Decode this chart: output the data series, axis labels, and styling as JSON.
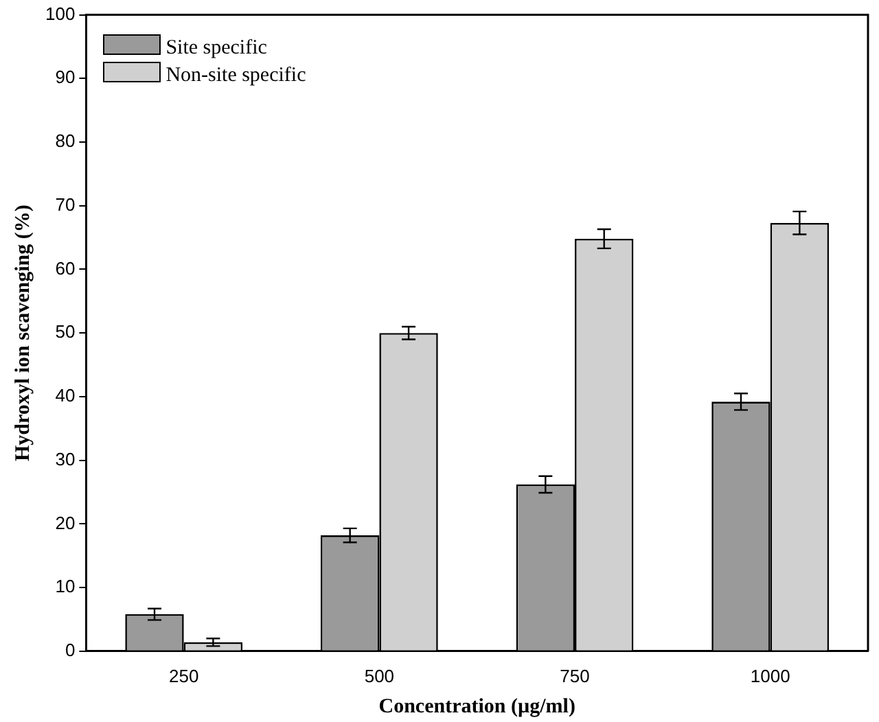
{
  "chart_data": {
    "type": "bar",
    "xlabel": "Concentration (µg/ml)",
    "ylabel": "Hydroxyl ion scavenging (%)",
    "categories": [
      "250",
      "500",
      "750",
      "1000"
    ],
    "series": [
      {
        "name": "Site specific",
        "color": "#9a9a9a",
        "values": [
          5.8,
          18.2,
          26.2,
          39.2
        ],
        "errors": [
          0.9,
          1.1,
          1.3,
          1.3
        ]
      },
      {
        "name": "Non-site specific",
        "color": "#d0d0d0",
        "values": [
          1.4,
          50,
          64.8,
          67.3
        ],
        "errors": [
          0.6,
          1.0,
          1.5,
          1.8
        ]
      }
    ],
    "ylim": [
      0,
      100
    ],
    "yticks": [
      0,
      10,
      20,
      30,
      40,
      50,
      60,
      70,
      80,
      90,
      100
    ],
    "grid": false,
    "legend": "top left"
  }
}
